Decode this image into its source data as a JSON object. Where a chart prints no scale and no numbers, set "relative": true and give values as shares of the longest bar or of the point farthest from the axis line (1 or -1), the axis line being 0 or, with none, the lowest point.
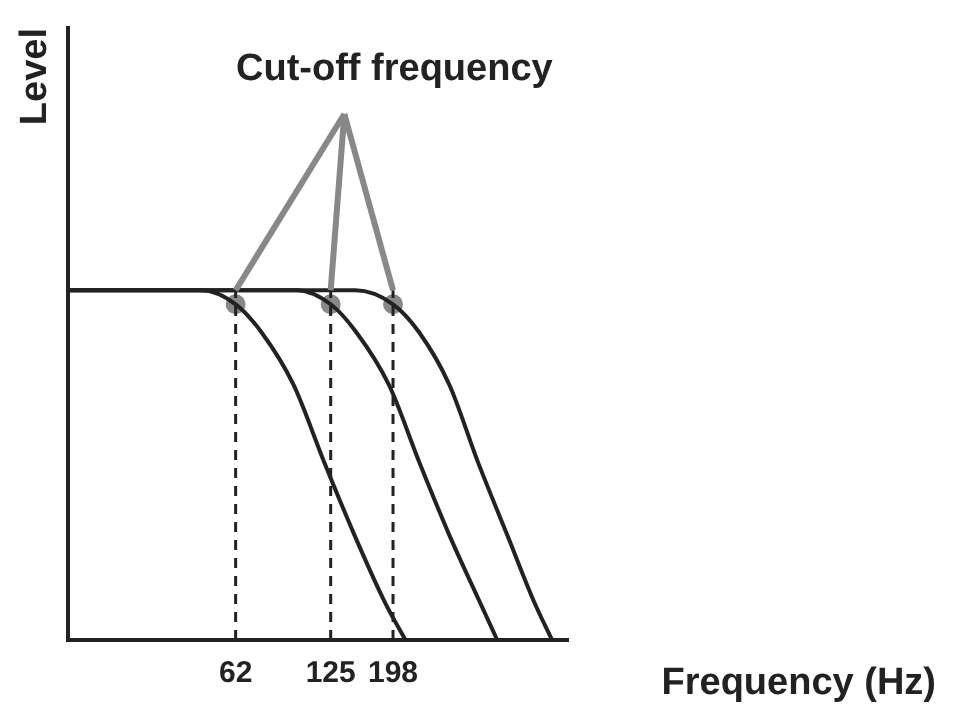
{
  "chart_data": {
    "type": "line",
    "relative": true,
    "log": "x",
    "xlabel": "Frequency (Hz)",
    "ylabel": "Level",
    "xlim": [
      18,
      720
    ],
    "xticks": [
      62,
      125,
      198
    ],
    "series": [
      {
        "color": "#222222",
        "x": [
          18,
          48,
          62,
          75,
          95,
          119,
          149,
          186,
          217
        ],
        "values": [
          1,
          1,
          0.96,
          0.88,
          0.73,
          0.51,
          0.3,
          0.11,
          0
        ]
      },
      {
        "color": "#222222",
        "x": [
          18,
          97,
          125,
          151,
          192,
          240,
          300,
          375,
          427
        ],
        "values": [
          1,
          1,
          0.96,
          0.88,
          0.73,
          0.51,
          0.3,
          0.11,
          0
        ]
      },
      {
        "color": "#222222",
        "x": [
          18,
          150,
          198,
          240,
          300,
          370,
          460,
          560,
          640
        ],
        "values": [
          1,
          1,
          0.96,
          0.88,
          0.73,
          0.51,
          0.3,
          0.11,
          0
        ]
      },
      {
        "type": "scatter",
        "marker": "circle",
        "color": "#888888",
        "x": [
          62,
          125,
          198
        ],
        "values": [
          0.96,
          0.96,
          0.96
        ]
      }
    ],
    "ref_lines": [
      {
        "axis": "x",
        "value": 62,
        "color": "#222222",
        "line_style": "dashed"
      },
      {
        "axis": "x",
        "value": 125,
        "color": "#222222",
        "line_style": "dashed"
      },
      {
        "axis": "x",
        "value": 198,
        "color": "#222222",
        "line_style": "dashed"
      }
    ],
    "annotations": [
      "Cut-off frequency"
    ],
    "marker": "none",
    "line_style": "solid",
    "grid": false,
    "legend": false,
    "tick_labels": "x"
  }
}
